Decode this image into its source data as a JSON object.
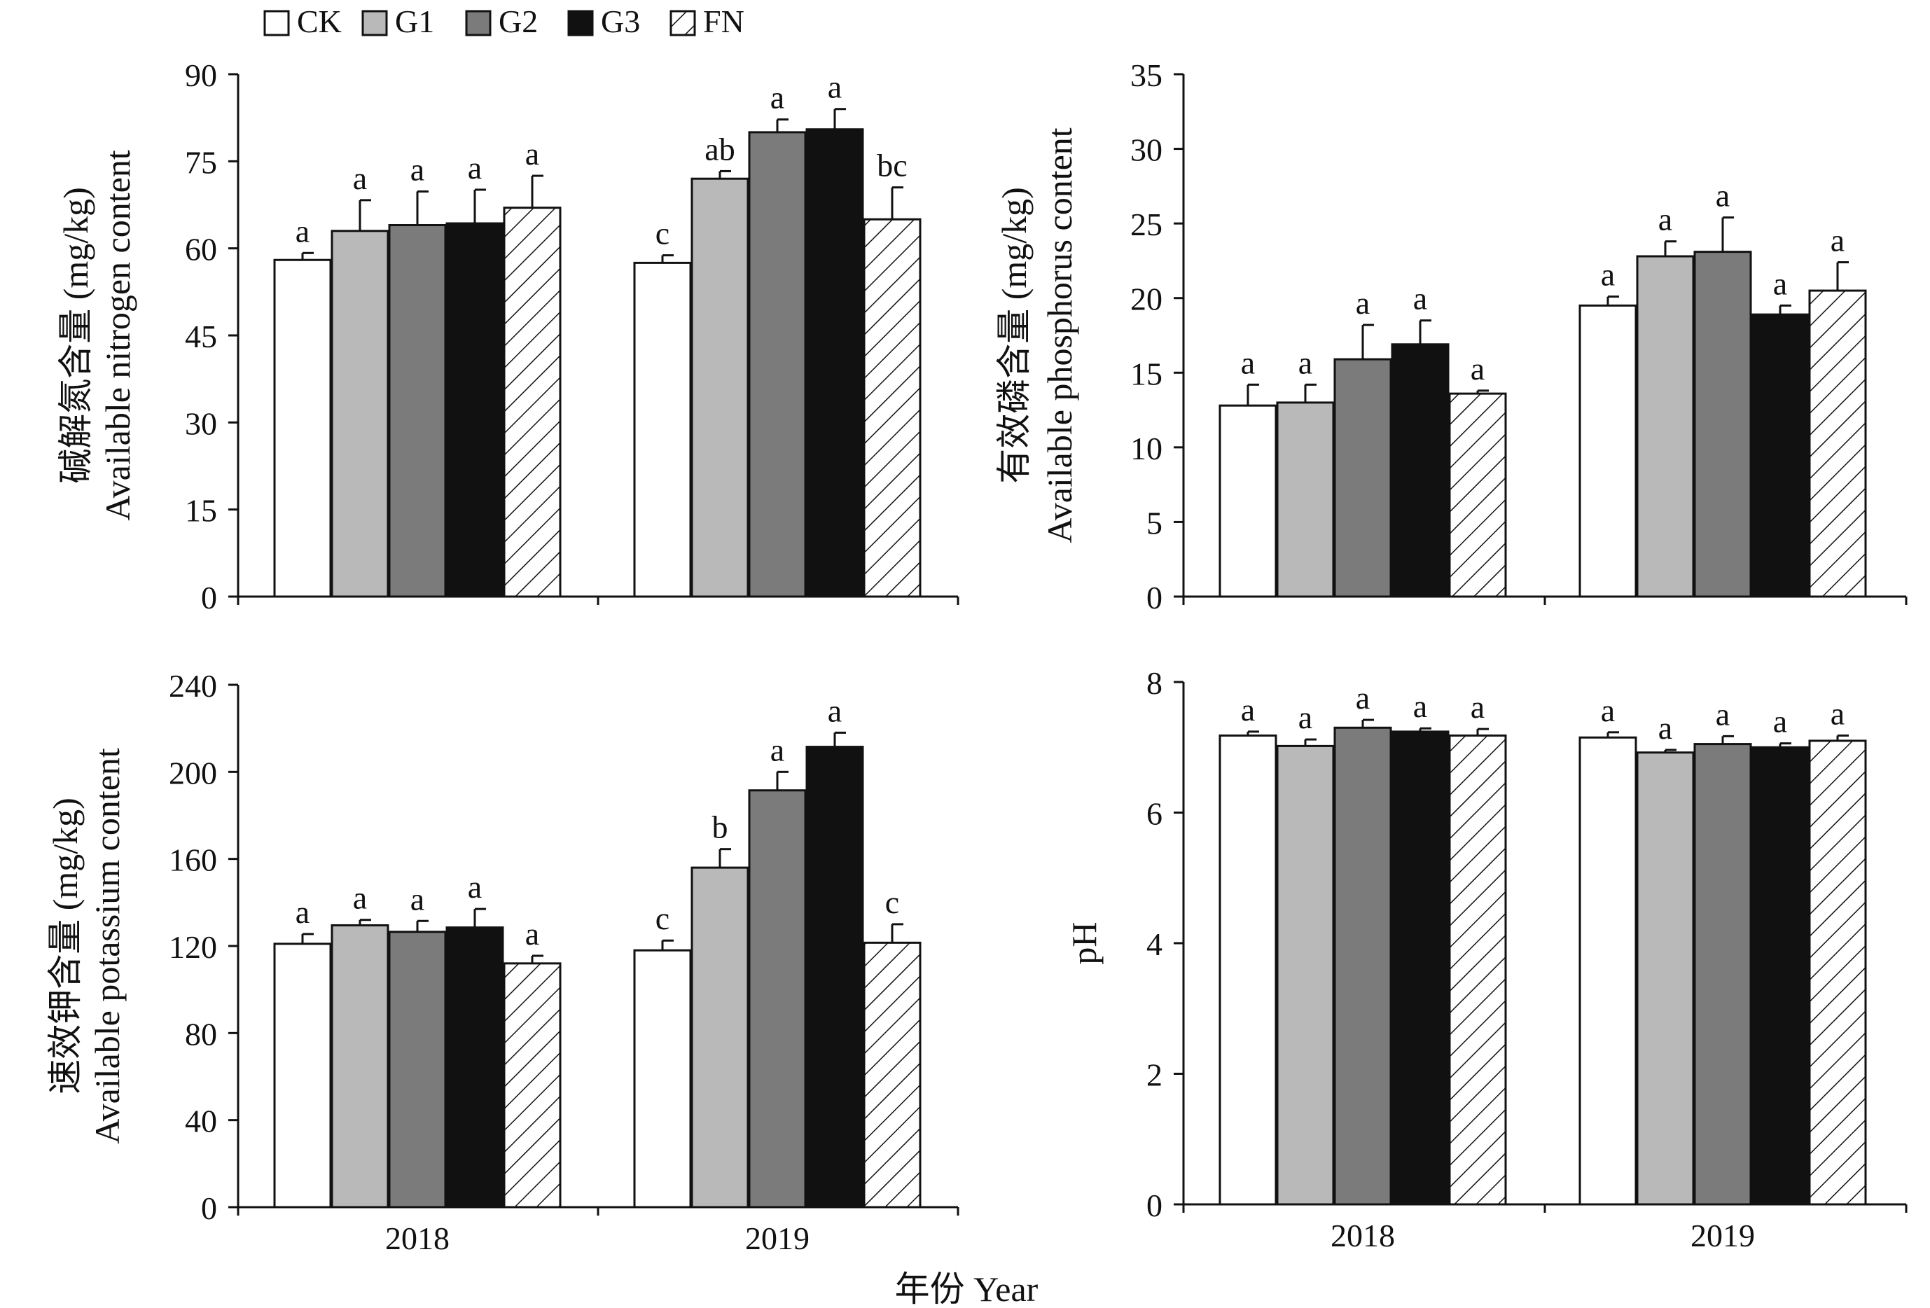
{
  "legend": {
    "items": [
      {
        "name": "CK",
        "fill": "#ffffff"
      },
      {
        "name": "G1",
        "fill": "#b9b9b9"
      },
      {
        "name": "G2",
        "fill": "#7b7b7b"
      },
      {
        "name": "G3",
        "fill": "#111111"
      },
      {
        "name": "FN",
        "fill": "hatch"
      }
    ]
  },
  "x_axis_title": "年份 Year",
  "chart_data": [
    {
      "type": "bar",
      "categories": [
        "2018",
        "2019"
      ],
      "ylabel_cn": "碱解氮含量 (mg/kg)",
      "ylabel_en": "Available nitrogen content",
      "ylim": [
        0,
        90
      ],
      "yticks": [
        0,
        15,
        30,
        45,
        60,
        75,
        90
      ],
      "series": [
        {
          "name": "CK",
          "values": [
            58,
            57.5
          ],
          "errors": [
            1.2,
            1.3
          ],
          "letters": [
            "a",
            "c"
          ]
        },
        {
          "name": "G1",
          "values": [
            63,
            72
          ],
          "errors": [
            5.3,
            1.3
          ],
          "letters": [
            "a",
            "ab"
          ]
        },
        {
          "name": "G2",
          "values": [
            64,
            80
          ],
          "errors": [
            5.8,
            2.2
          ],
          "letters": [
            "a",
            "a"
          ]
        },
        {
          "name": "G3",
          "values": [
            64.3,
            80.5
          ],
          "errors": [
            5.8,
            3.5
          ],
          "letters": [
            "a",
            "a"
          ]
        },
        {
          "name": "FN",
          "values": [
            67,
            65
          ],
          "errors": [
            5.5,
            5.5
          ],
          "letters": [
            "a",
            "bc"
          ]
        }
      ]
    },
    {
      "type": "bar",
      "categories": [
        "2018",
        "2019"
      ],
      "ylabel_cn": "有效磷含量 (mg/kg)",
      "ylabel_en": "Available phosphorus content",
      "ylim": [
        0,
        35
      ],
      "yticks": [
        0,
        5,
        10,
        15,
        20,
        25,
        30,
        35
      ],
      "series": [
        {
          "name": "CK",
          "values": [
            12.8,
            19.5
          ],
          "errors": [
            1.4,
            0.6
          ],
          "letters": [
            "a",
            "a"
          ]
        },
        {
          "name": "G1",
          "values": [
            13,
            22.8
          ],
          "errors": [
            1.2,
            1.0
          ],
          "letters": [
            "a",
            "a"
          ]
        },
        {
          "name": "G2",
          "values": [
            15.9,
            23.1
          ],
          "errors": [
            2.3,
            2.3
          ],
          "letters": [
            "a",
            "a"
          ]
        },
        {
          "name": "G3",
          "values": [
            16.9,
            18.9
          ],
          "errors": [
            1.6,
            0.6
          ],
          "letters": [
            "a",
            "a"
          ]
        },
        {
          "name": "FN",
          "values": [
            13.6,
            20.5
          ],
          "errors": [
            0.2,
            1.9
          ],
          "letters": [
            "a",
            "a"
          ]
        }
      ]
    },
    {
      "type": "bar",
      "categories": [
        "2018",
        "2019"
      ],
      "ylabel_cn": "速效钾含量 (mg/kg)",
      "ylabel_en": "Available potassium content",
      "ylim": [
        0,
        240
      ],
      "yticks": [
        0,
        40,
        80,
        120,
        160,
        200,
        240
      ],
      "series": [
        {
          "name": "CK",
          "values": [
            121,
            118
          ],
          "errors": [
            4.5,
            4.5
          ],
          "letters": [
            "a",
            "c"
          ]
        },
        {
          "name": "G1",
          "values": [
            129.5,
            156
          ],
          "errors": [
            2.5,
            8.5
          ],
          "letters": [
            "a",
            "b"
          ]
        },
        {
          "name": "G2",
          "values": [
            126.5,
            191.5
          ],
          "errors": [
            5,
            8.5
          ],
          "letters": [
            "a",
            "a"
          ]
        },
        {
          "name": "G3",
          "values": [
            128.5,
            211.5
          ],
          "errors": [
            8.5,
            6.5
          ],
          "letters": [
            "a",
            "a"
          ]
        },
        {
          "name": "FN",
          "values": [
            112,
            121.5
          ],
          "errors": [
            3.5,
            8.5
          ],
          "letters": [
            "a",
            "c"
          ]
        }
      ]
    },
    {
      "type": "bar",
      "categories": [
        "2018",
        "2019"
      ],
      "ylabel_cn": "",
      "ylabel_en": "pH",
      "ylim": [
        0,
        8
      ],
      "yticks": [
        0,
        2,
        4,
        6,
        8
      ],
      "series": [
        {
          "name": "CK",
          "values": [
            7.18,
            7.15
          ],
          "errors": [
            0.06,
            0.08
          ],
          "letters": [
            "a",
            "a"
          ]
        },
        {
          "name": "G1",
          "values": [
            7.02,
            6.92
          ],
          "errors": [
            0.1,
            0.04
          ],
          "letters": [
            "a",
            "a"
          ]
        },
        {
          "name": "G2",
          "values": [
            7.3,
            7.05
          ],
          "errors": [
            0.12,
            0.12
          ],
          "letters": [
            "a",
            "a"
          ]
        },
        {
          "name": "G3",
          "values": [
            7.24,
            7.0
          ],
          "errors": [
            0.05,
            0.06
          ],
          "letters": [
            "a",
            "a"
          ]
        },
        {
          "name": "FN",
          "values": [
            7.18,
            7.1
          ],
          "errors": [
            0.1,
            0.08
          ],
          "letters": [
            "a",
            "a"
          ]
        }
      ]
    }
  ]
}
